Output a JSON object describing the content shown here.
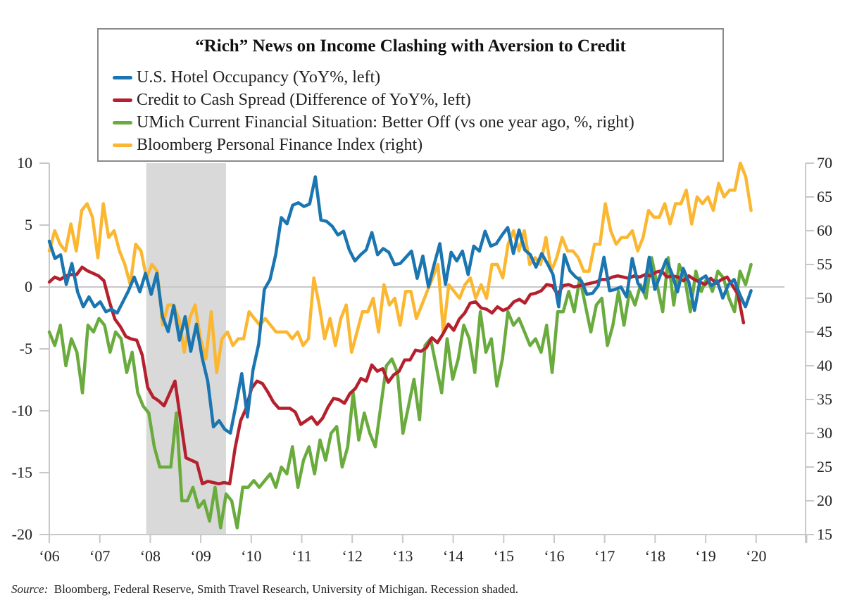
{
  "chart_data": {
    "type": "line",
    "title": "“Rich” News on Income Clashing with Aversion to Credit",
    "xlabel": "",
    "ylabel_left": "",
    "ylabel_right": "",
    "x_range": [
      2006.0,
      2021.0
    ],
    "x_ticks": [
      2006,
      2007,
      2008,
      2009,
      2010,
      2011,
      2012,
      2013,
      2014,
      2015,
      2016,
      2017,
      2018,
      2019,
      2020
    ],
    "x_tick_labels": [
      "‘06",
      "‘07",
      "‘08",
      "‘09",
      "‘10",
      "‘11",
      "‘12",
      "‘13",
      "‘14",
      "‘15",
      "‘16",
      "‘17",
      "‘18",
      "‘19",
      "‘20"
    ],
    "ylim_left": [
      -20,
      10
    ],
    "y_ticks_left": [
      10,
      5,
      0,
      -5,
      -10,
      -15,
      -20
    ],
    "ylim_right": [
      15,
      70
    ],
    "y_ticks_right": [
      70,
      65,
      60,
      55,
      50,
      45,
      40,
      35,
      30,
      25,
      20,
      15
    ],
    "grid": false,
    "zero_line": true,
    "legend_position": "top",
    "recession": {
      "start": 2007.92,
      "end": 2009.5,
      "color": "#d9d9d9"
    },
    "series": [
      {
        "name": "U.S. Hotel Occupancy (YoY%, left)",
        "axis": "left",
        "color": "#1a75b0",
        "x_start": 2006.0,
        "x_step": 0.1667,
        "values": [
          3.7,
          2.3,
          2.6,
          0.2,
          1.9,
          -0.4,
          -1.6,
          -0.8,
          -1.6,
          -1.2,
          -2.0,
          -1.8,
          -2.1,
          -1.2,
          -0.3,
          0.8,
          -0.4,
          1.1,
          -0.6,
          1.1,
          -2.4,
          -3.6,
          -1.5,
          -4.3,
          -2.4,
          -5.2,
          -3.0,
          -5.7,
          -7.6,
          -11.3,
          -10.8,
          -11.5,
          -11.8,
          -9.5,
          -7.0,
          -10.5,
          -6.7,
          -4.6,
          -0.2,
          0.6,
          2.6,
          5.6,
          5.1,
          6.6,
          6.8,
          6.5,
          6.7,
          8.9,
          5.4,
          5.3,
          4.9,
          4.2,
          4.5,
          3.0,
          2.1,
          2.6,
          3.0,
          4.4,
          2.6,
          3.1,
          2.8,
          1.8,
          1.9,
          2.4,
          2.9,
          0.7,
          2.5,
          0.0,
          1.8,
          3.5,
          0.2,
          2.8,
          2.1,
          2.9,
          1.0,
          3.3,
          2.9,
          4.5,
          3.3,
          3.5,
          4.2,
          4.8,
          2.7,
          4.6,
          3.0,
          2.6,
          1.6,
          2.7,
          1.9,
          1.0,
          -1.6,
          2.6,
          1.3,
          0.8,
          0.5,
          -0.6,
          -0.5,
          0.1,
          2.4,
          -0.3,
          -0.2,
          0.0,
          -0.8,
          2.3,
          0.3,
          -0.4,
          2.4,
          -0.2,
          1.0,
          2.2,
          1.1,
          -0.4,
          1.5,
          0.4,
          -1.9,
          0.6,
          0.9,
          0.1,
          0.5,
          -0.9,
          0.2,
          0.6,
          -0.6,
          -1.6,
          -0.3
        ],
        "last_x": 2019.9
      },
      {
        "name": "Credit to Cash Spread (Difference of YoY%, left)",
        "axis": "left",
        "color": "#b5202e",
        "x_start": 2006.0,
        "x_step": 0.1667,
        "values": [
          0.4,
          0.8,
          0.6,
          0.9,
          1.0,
          1.0,
          1.6,
          1.3,
          1.1,
          0.9,
          0.5,
          -1.2,
          -2.6,
          -3.2,
          -4.0,
          -4.2,
          -4.3,
          -5.5,
          -8.1,
          -8.9,
          -9.2,
          -9.6,
          -8.6,
          -7.6,
          -10.7,
          -13.8,
          -14.0,
          -14.2,
          -15.9,
          -15.7,
          -15.8,
          -15.9,
          -15.8,
          -15.9,
          -13.0,
          -10.8,
          -9.8,
          -8.2,
          -7.6,
          -7.8,
          -8.5,
          -9.3,
          -9.8,
          -9.8,
          -9.8,
          -10.1,
          -11.1,
          -10.8,
          -10.5,
          -11.1,
          -10.6,
          -9.7,
          -9.0,
          -9.1,
          -9.4,
          -8.6,
          -8.2,
          -7.4,
          -7.6,
          -6.3,
          -6.8,
          -6.6,
          -7.7,
          -7.1,
          -6.8,
          -5.9,
          -5.9,
          -5.1,
          -5.2,
          -4.9,
          -4.1,
          -4.5,
          -3.8,
          -3.0,
          -3.5,
          -2.6,
          -2.1,
          -1.3,
          -1.2,
          -1.7,
          -1.8,
          -2.1,
          -1.6,
          -1.9,
          -1.7,
          -1.2,
          -1.0,
          -1.3,
          -0.6,
          -0.5,
          -0.3,
          0.2,
          0.1,
          -0.6,
          0.1,
          0.2,
          0.0,
          0.1,
          0.2,
          0.3,
          0.4,
          0.6,
          0.6,
          0.8,
          0.9,
          0.8,
          0.7,
          0.9,
          0.8,
          1.0,
          0.9,
          1.2,
          1.3,
          0.8,
          0.9,
          0.8,
          0.5,
          0.9,
          0.6,
          0.4,
          0.2,
          0.7,
          0.3,
          0.6,
          0.8,
          0.1,
          -0.6,
          -2.9
        ],
        "last_x": 2019.75
      },
      {
        "name": "UMich Current Financial Situation: Better Off (vs one year ago, %, right)",
        "axis": "right",
        "color": "#6aab3e",
        "x_start": 2006.0,
        "x_step": 0.1667,
        "values": [
          45,
          43,
          46,
          40,
          44,
          42,
          36,
          46,
          45,
          47,
          46,
          42,
          45,
          44,
          39,
          42,
          36,
          34,
          33,
          28,
          25,
          25,
          25,
          33,
          20,
          20,
          22,
          19,
          20,
          17,
          22,
          16,
          21,
          20,
          16,
          22,
          22,
          23,
          22,
          23,
          24,
          22,
          25,
          24,
          28,
          22,
          26,
          28,
          24,
          29,
          26,
          30,
          31,
          25,
          28,
          36,
          29,
          33,
          30,
          28,
          34,
          40,
          41,
          39,
          30,
          34,
          38,
          32,
          43,
          44,
          40,
          36,
          44,
          38,
          41,
          46,
          44,
          39,
          48,
          42,
          44,
          37,
          41,
          48,
          46,
          47,
          45,
          43,
          44,
          42,
          46,
          39,
          48,
          48,
          51,
          48,
          53,
          49,
          45,
          49,
          50,
          43,
          46,
          51,
          46,
          51,
          49,
          52,
          50,
          56,
          52,
          48,
          56,
          49,
          55,
          53,
          48,
          54,
          51,
          53,
          51,
          54,
          53,
          50,
          48,
          54,
          52,
          55
        ],
        "last_x": 2019.9
      },
      {
        "name": "Bloomberg Personal Finance Index (right)",
        "axis": "right",
        "color": "#fbb731",
        "x_start": 2006.0,
        "x_step": 0.1667,
        "values": [
          57,
          60,
          58,
          57,
          61,
          57,
          63,
          64,
          62,
          56,
          64,
          59,
          60,
          57,
          55,
          52,
          58,
          57,
          53,
          55,
          54,
          46,
          49,
          49,
          47,
          42,
          47,
          49,
          44,
          41,
          48,
          39,
          44,
          45,
          43,
          44,
          44,
          48,
          47,
          46,
          47,
          46,
          45,
          45,
          45,
          44,
          45,
          43,
          44,
          53,
          49,
          44,
          47,
          43,
          47,
          49,
          42,
          45,
          48,
          48,
          50,
          45,
          52,
          49,
          50,
          46,
          51,
          51,
          47,
          49,
          51,
          53,
          55,
          45,
          52,
          51,
          50,
          52,
          53,
          50,
          52,
          50,
          55,
          55,
          53,
          58,
          60,
          57,
          60,
          55,
          56,
          55,
          59,
          54,
          56,
          59,
          57,
          57,
          56,
          54,
          54,
          58,
          58,
          64,
          60,
          58,
          59,
          59,
          60,
          57,
          59,
          63,
          62,
          62,
          64,
          61,
          64,
          64,
          66,
          61,
          65,
          64,
          65,
          63,
          67,
          65,
          66,
          66,
          70,
          68,
          63
        ],
        "last_x": 2019.9
      }
    ]
  },
  "legend": {
    "title": "“Rich” News on Income Clashing with Aversion to Credit",
    "items": [
      {
        "label": "U.S. Hotel Occupancy (YoY%, left)",
        "color": "#1a75b0"
      },
      {
        "label": "Credit to Cash Spread (Difference of YoY%, left)",
        "color": "#b5202e"
      },
      {
        "label": "UMich Current Financial Situation: Better Off (vs one year ago, %, right)",
        "color": "#6aab3e"
      },
      {
        "label": "Bloomberg Personal Finance Index (right)",
        "color": "#fbb731"
      }
    ]
  },
  "source": {
    "prefix": "Source:",
    "text": "Bloomberg, Federal Reserve, Smith Travel Research, University of Michigan. Recession shaded."
  }
}
